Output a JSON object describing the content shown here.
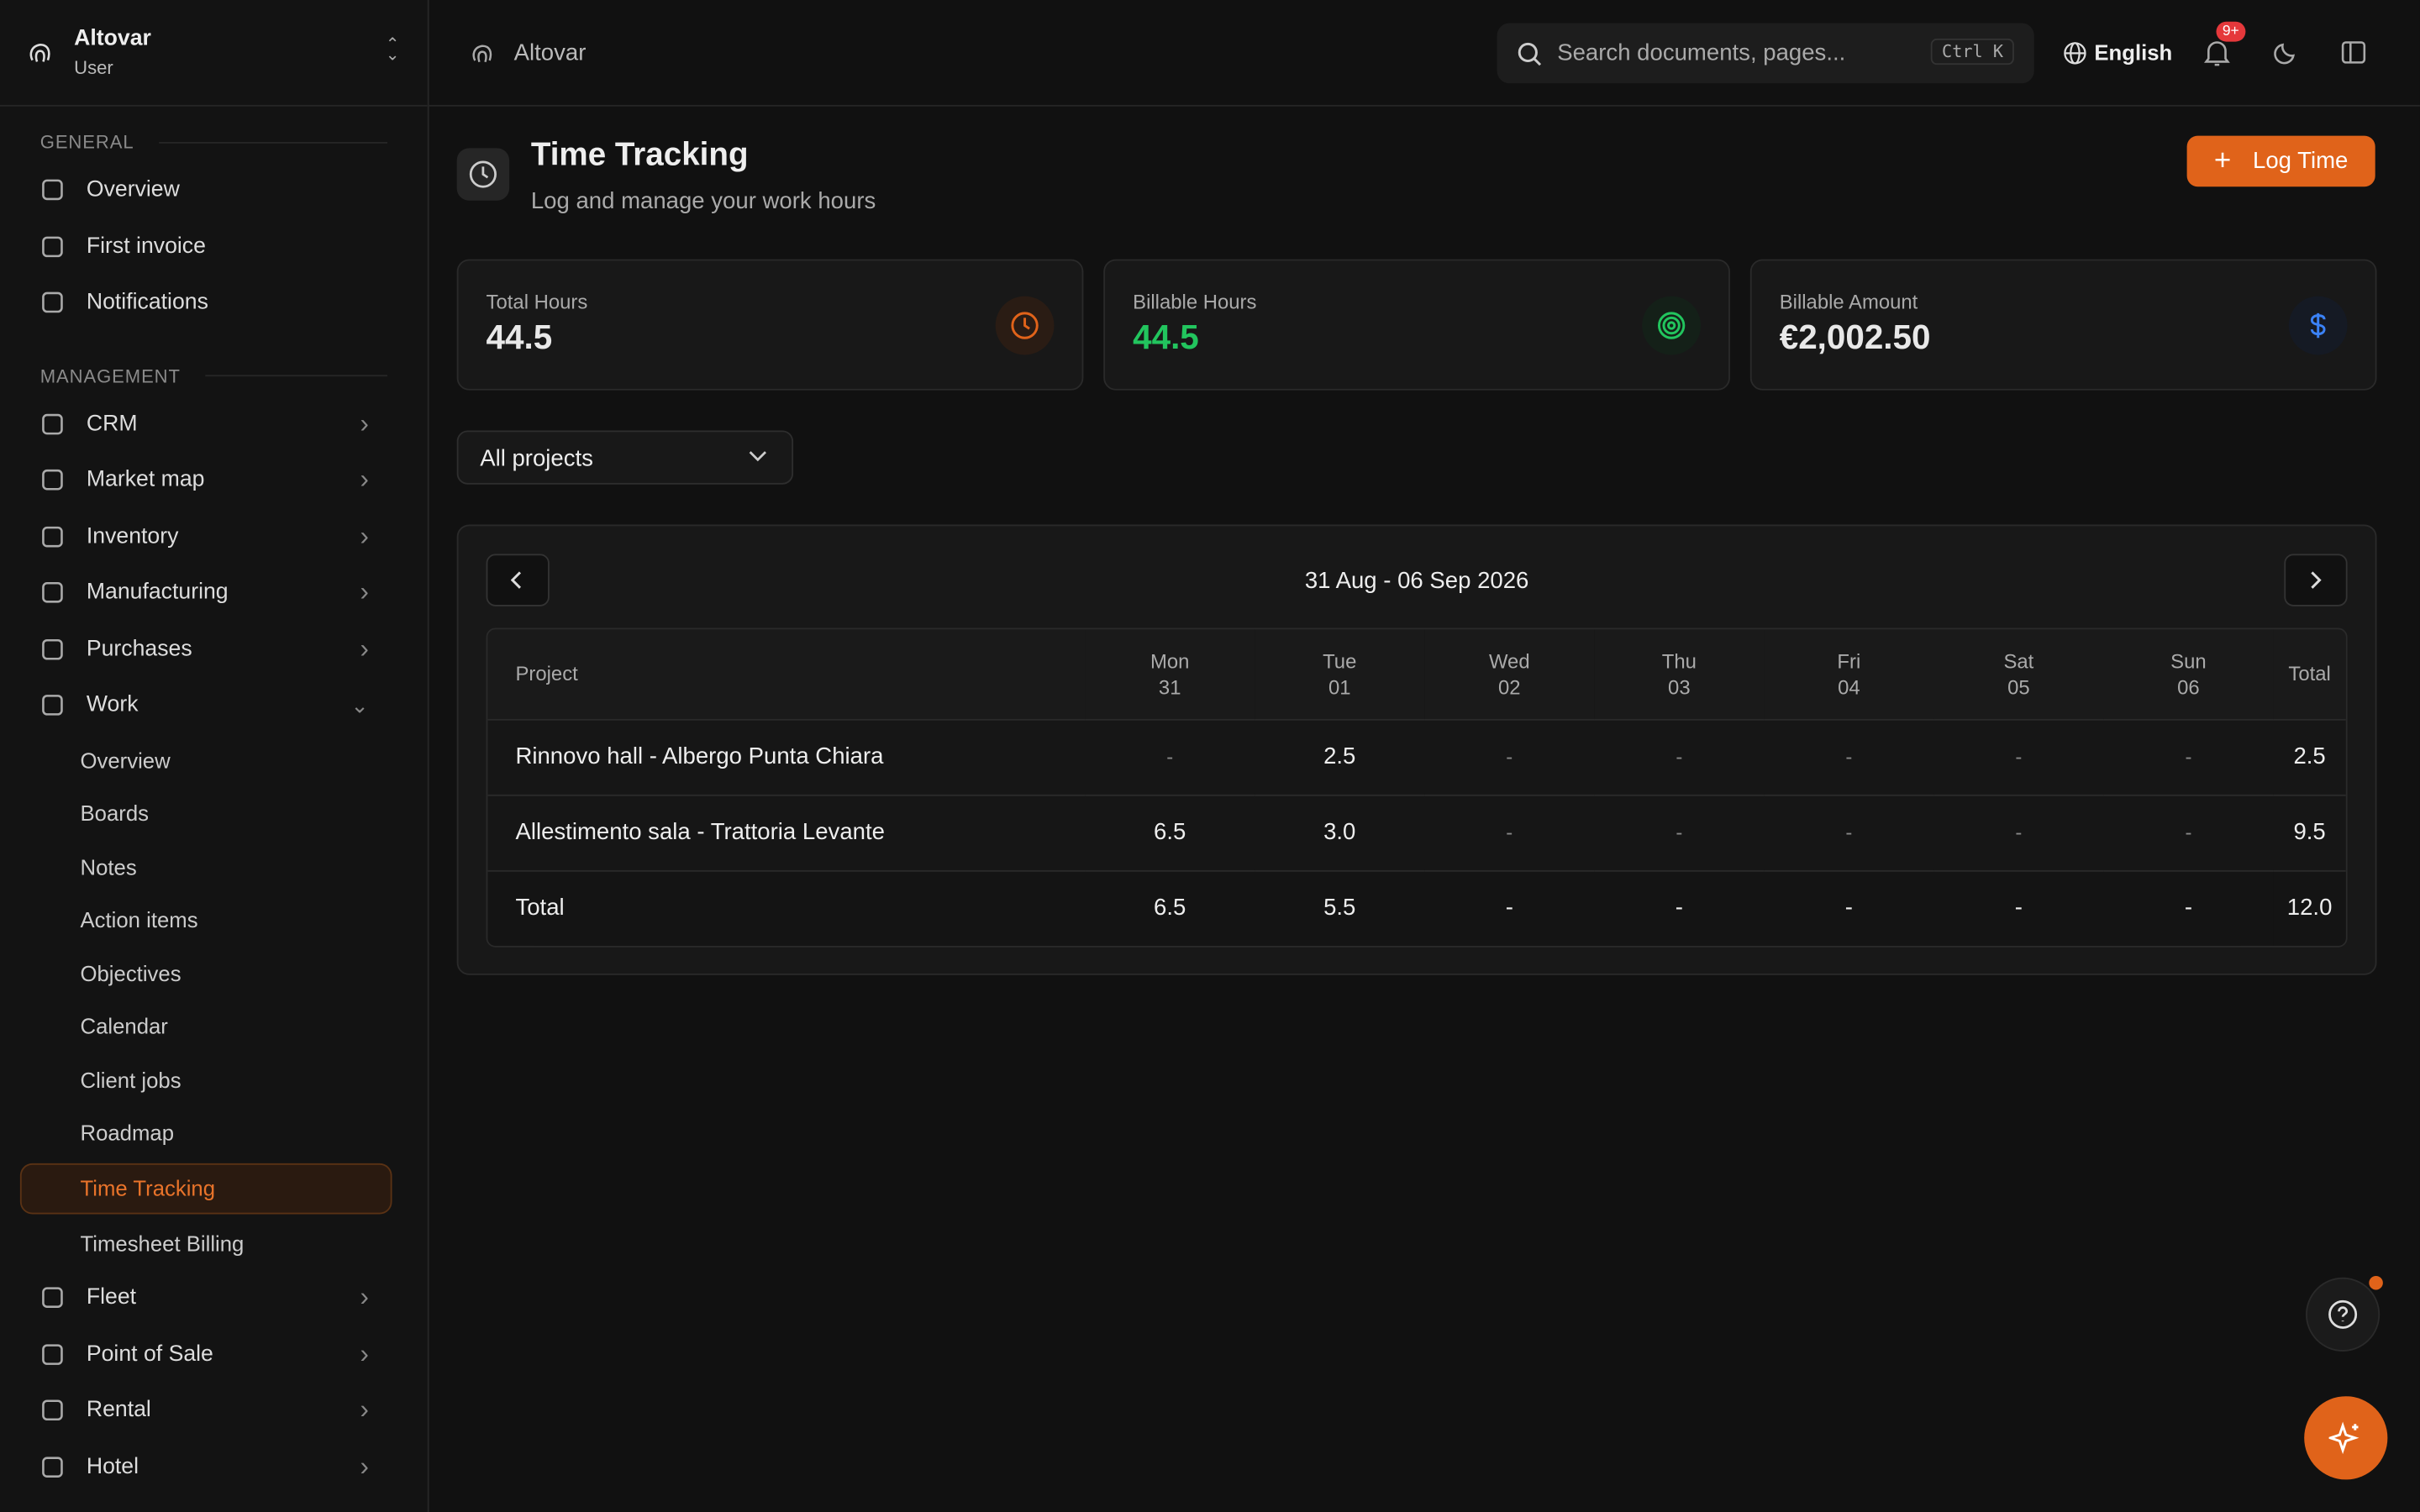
{
  "brand": {
    "name": "Altovar",
    "role": "User"
  },
  "sidebar": {
    "sections": [
      {
        "title": "GENERAL",
        "items": [
          {
            "label": "Overview"
          },
          {
            "label": "First invoice"
          },
          {
            "label": "Notifications"
          }
        ]
      },
      {
        "title": "MANAGEMENT",
        "items": [
          {
            "label": "CRM"
          },
          {
            "label": "Market map"
          },
          {
            "label": "Inventory"
          },
          {
            "label": "Manufacturing"
          },
          {
            "label": "Purchases"
          },
          {
            "label": "Work",
            "children": [
              "Overview",
              "Boards",
              "Notes",
              "Action items",
              "Objectives",
              "Calendar",
              "Client jobs",
              "Roadmap",
              "Time Tracking",
              "Timesheet Billing"
            ]
          },
          {
            "label": "Fleet"
          },
          {
            "label": "Point of Sale"
          },
          {
            "label": "Rental"
          },
          {
            "label": "Hotel"
          }
        ]
      }
    ]
  },
  "topbar": {
    "breadcrumb": "Altovar",
    "search": "Search documents, pages...",
    "shortcut": "Ctrl K",
    "language": "English",
    "badge": "9+"
  },
  "header": {
    "title": "Time Tracking",
    "subtitle": "Log and manage your work hours",
    "button": "Log Time"
  },
  "stats": [
    {
      "label": "Total Hours",
      "value": "44.5"
    },
    {
      "label": "Billable Hours",
      "value": "44.5"
    },
    {
      "label": "Billable Amount",
      "value": "€2,002.50"
    }
  ],
  "filter": "All projects",
  "week": "31 Aug - 06 Sep 2026",
  "table": {
    "columns": [
      {
        "day": "Project"
      },
      {
        "day": "Mon",
        "date": "31"
      },
      {
        "day": "Tue",
        "date": "01"
      },
      {
        "day": "Wed",
        "date": "02"
      },
      {
        "day": "Thu",
        "date": "03"
      },
      {
        "day": "Fri",
        "date": "04"
      },
      {
        "day": "Sat",
        "date": "05"
      },
      {
        "day": "Sun",
        "date": "06"
      },
      {
        "day": "Total"
      }
    ],
    "rows": [
      [
        "Rinnovo hall - Albergo Punta Chiara",
        "-",
        "2.5",
        "-",
        "-",
        "-",
        "-",
        "-",
        "2.5"
      ],
      [
        "Allestimento sala - Trattoria Levante",
        "6.5",
        "3.0",
        "-",
        "-",
        "-",
        "-",
        "-",
        "9.5"
      ]
    ],
    "total": [
      "Total",
      "6.5",
      "5.5",
      "-",
      "-",
      "-",
      "-",
      "-",
      "12.0"
    ]
  }
}
